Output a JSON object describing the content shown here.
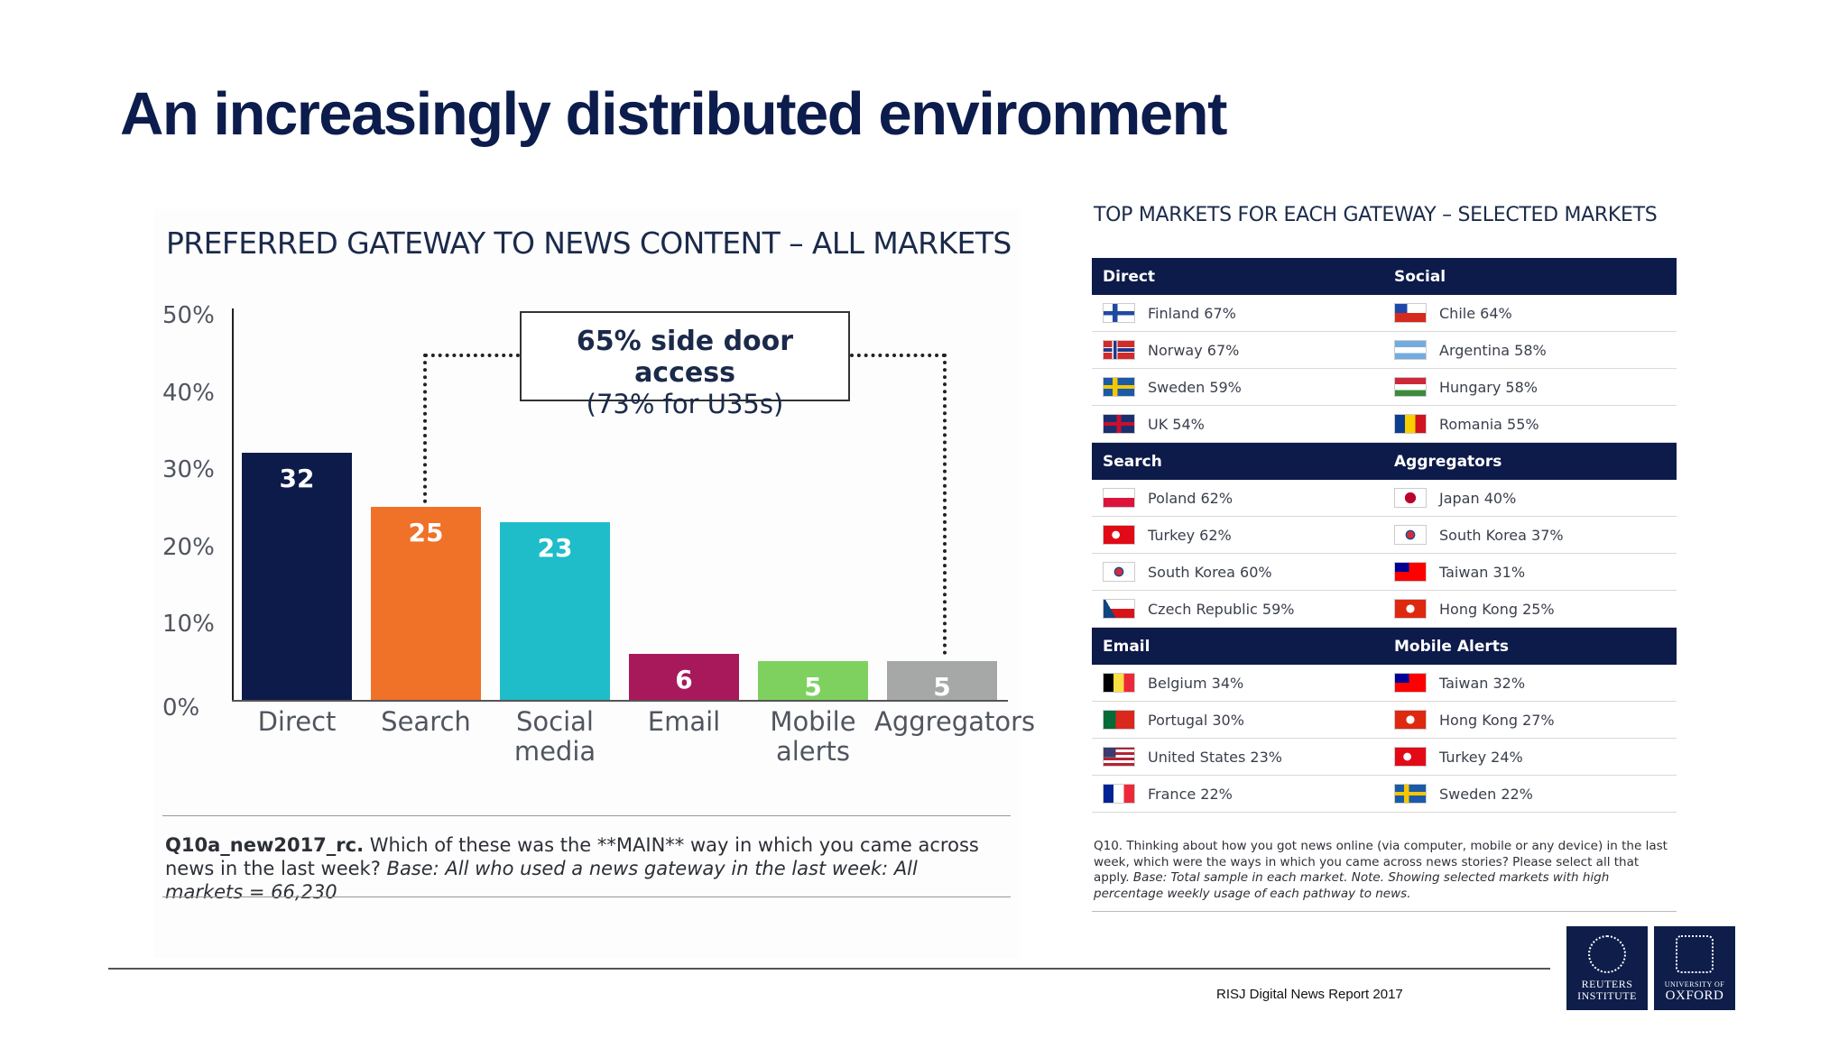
{
  "slide": {
    "title": "An increasingly distributed environment",
    "source": "RISJ Digital News Report 2017"
  },
  "chart_data": {
    "type": "bar",
    "title": "PREFERRED GATEWAY TO NEWS CONTENT – ALL MARKETS",
    "categories": [
      "Direct",
      "Search",
      "Social media",
      "Email",
      "Mobile alerts",
      "Aggregators"
    ],
    "category_lines": [
      [
        "Direct"
      ],
      [
        "Search"
      ],
      [
        "Social",
        "media"
      ],
      [
        "Email"
      ],
      [
        "Mobile",
        "alerts"
      ],
      [
        "Aggregators"
      ]
    ],
    "values": [
      32,
      25,
      23,
      6,
      5,
      5
    ],
    "value_labels": [
      "32",
      "25",
      "23",
      "6",
      "5",
      "5"
    ],
    "colors": [
      "#0d1b4a",
      "#f07128",
      "#1ebdc9",
      "#a8195c",
      "#7ed15f",
      "#a5a8a7"
    ],
    "ylim": [
      0,
      50
    ],
    "yticks": [
      "0%",
      "10%",
      "20%",
      "30%",
      "40%",
      "50%"
    ],
    "annotation": {
      "main": "65% side door access",
      "sub": "(73% for U35s)"
    }
  },
  "footnote_left": {
    "code": "Q10a_new2017_rc.",
    "question": " Which of these was the **MAIN** way in which you came across news in the last week? ",
    "base": "Base: All who used a news gateway in the last week: All markets = 66,230"
  },
  "table": {
    "title": "TOP MARKETS FOR EACH GATEWAY – SELECTED MARKETS",
    "sections": [
      {
        "left_header": "Direct",
        "right_header": "Social",
        "rows": [
          {
            "left": "Finland 67%",
            "left_flag": "finland",
            "right": "Chile 64%",
            "right_flag": "chile"
          },
          {
            "left": "Norway 67%",
            "left_flag": "norway",
            "right": "Argentina 58%",
            "right_flag": "argentina"
          },
          {
            "left": "Sweden 59%",
            "left_flag": "sweden",
            "right": "Hungary 58%",
            "right_flag": "hungary"
          },
          {
            "left": "UK 54%",
            "left_flag": "uk",
            "right": "Romania 55%",
            "right_flag": "romania"
          }
        ]
      },
      {
        "left_header": "Search",
        "right_header": "Aggregators",
        "rows": [
          {
            "left": "Poland 62%",
            "left_flag": "poland",
            "right": "Japan 40%",
            "right_flag": "japan"
          },
          {
            "left": "Turkey 62%",
            "left_flag": "turkey",
            "right": "South Korea 37%",
            "right_flag": "south-korea"
          },
          {
            "left": "South Korea 60%",
            "left_flag": "south-korea",
            "right": "Taiwan 31%",
            "right_flag": "taiwan"
          },
          {
            "left": "Czech Republic 59%",
            "left_flag": "czech-republic",
            "right": "Hong Kong 25%",
            "right_flag": "hong-kong"
          }
        ]
      },
      {
        "left_header": "Email",
        "right_header": "Mobile Alerts",
        "rows": [
          {
            "left": "Belgium 34%",
            "left_flag": "belgium",
            "right": "Taiwan 32%",
            "right_flag": "taiwan"
          },
          {
            "left": "Portugal 30%",
            "left_flag": "portugal",
            "right": "Hong Kong 27%",
            "right_flag": "hong-kong"
          },
          {
            "left": "United States 23%",
            "left_flag": "united-states",
            "right": "Turkey 24%",
            "right_flag": "turkey"
          },
          {
            "left": "France 22%",
            "left_flag": "france",
            "right": "Sweden 22%",
            "right_flag": "sweden"
          }
        ]
      }
    ],
    "footnote": {
      "question": "Q10. Thinking about how you got news online (via computer, mobile or any device) in the last week, which were the ways in which you came across news stories? Please select all that apply.",
      "base": "Base: Total sample in each market. Note. Showing selected markets with high percentage weekly usage of each pathway to news."
    }
  },
  "logos": {
    "reuters_line1": "REUTERS",
    "reuters_line2": "INSTITUTE",
    "oxford_line1": "UNIVERSITY OF",
    "oxford_line2": "OXFORD"
  }
}
